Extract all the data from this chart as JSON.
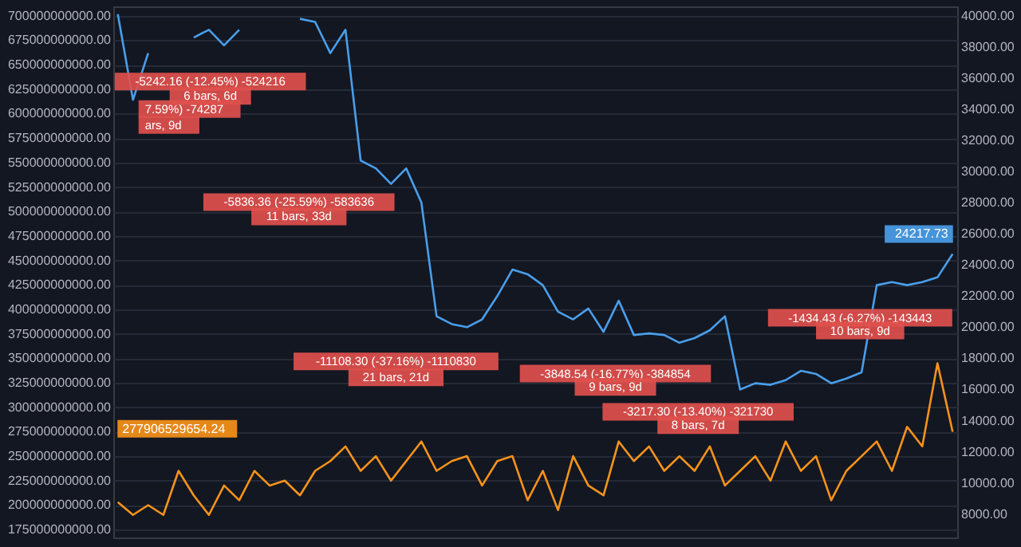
{
  "chart_data": {
    "type": "line",
    "categories": [
      null,
      null,
      null,
      null,
      null,
      null,
      null,
      null,
      null,
      null,
      null,
      null,
      null,
      null,
      null,
      null,
      null,
      null,
      null,
      null,
      null,
      null,
      null,
      null,
      null,
      null,
      null,
      null,
      null,
      null,
      null,
      null,
      null,
      null,
      null,
      null,
      null,
      null,
      null,
      null,
      null,
      null,
      null,
      null,
      null,
      null,
      null,
      null,
      null,
      null,
      null,
      null,
      null,
      null,
      null,
      null
    ],
    "series": [
      {
        "color": "#f7931a",
        "values": [
          203000000000,
          190000000000,
          200000000000,
          190000000000,
          235000000000,
          210000000000,
          190000000000,
          220000000000,
          205000000000,
          235000000000,
          220000000000,
          225000000000,
          210000000000,
          235000000000,
          245000000000,
          260000000000,
          235000000000,
          250000000000,
          225000000000,
          245000000000,
          265000000000,
          235000000000,
          245000000000,
          250000000000,
          220000000000,
          245000000000,
          250000000000,
          205000000000,
          235000000000,
          195000000000,
          250000000000,
          220000000000,
          210000000000,
          265000000000,
          245000000000,
          260000000000,
          235000000000,
          250000000000,
          235000000000,
          260000000000,
          220000000000,
          235000000000,
          250000000000,
          225000000000,
          265000000000,
          235000000000,
          250000000000,
          205000000000,
          235000000000,
          250000000000,
          265000000000,
          235000000000,
          280000000000,
          260000000000,
          345000000000,
          275000000000
        ]
      },
      {
        "color": "#4a9eea",
        "axis": "y2",
        "values": [
          40100,
          34600,
          37600,
          null,
          null,
          38600,
          39100,
          38100,
          39100,
          null,
          null,
          null,
          39800,
          39600,
          37600,
          39100,
          30700,
          30200,
          29200,
          30200,
          28000,
          20700,
          20200,
          20000,
          20500,
          22000,
          23700,
          23400,
          22700,
          21000,
          20500,
          21200,
          19700,
          21700,
          19500,
          19600,
          19500,
          19000,
          19300,
          19800,
          20700,
          16000,
          16400,
          16300,
          16600,
          17200,
          17000,
          16400,
          16700,
          17100,
          22700,
          22900,
          22700,
          22900,
          23200,
          24700
        ]
      }
    ],
    "ylim": [
      167000000000,
      709500000000
    ],
    "yticks": [
      {
        "value": 175000000000,
        "label": "175000000000.00"
      },
      {
        "value": 200000000000,
        "label": "200000000000.00"
      },
      {
        "value": 225000000000,
        "label": "225000000000.00"
      },
      {
        "value": 250000000000,
        "label": "250000000000.00"
      },
      {
        "value": 275000000000,
        "label": "275000000000.00"
      },
      {
        "value": 300000000000,
        "label": "300000000000.00"
      },
      {
        "value": 325000000000,
        "label": "325000000000.00"
      },
      {
        "value": 350000000000,
        "label": "350000000000.00"
      },
      {
        "value": 375000000000,
        "label": "375000000000.00"
      },
      {
        "value": 400000000000,
        "label": "400000000000.00"
      },
      {
        "value": 425000000000,
        "label": "425000000000.00"
      },
      {
        "value": 450000000000,
        "label": "450000000000.00"
      },
      {
        "value": 475000000000,
        "label": "475000000000.00"
      },
      {
        "value": 500000000000,
        "label": "500000000000.00"
      },
      {
        "value": 525000000000,
        "label": "525000000000.00"
      },
      {
        "value": 550000000000,
        "label": "550000000000.00"
      },
      {
        "value": 575000000000,
        "label": "575000000000.00"
      },
      {
        "value": 600000000000,
        "label": "600000000000.00"
      },
      {
        "value": 625000000000,
        "label": "625000000000.00"
      },
      {
        "value": 650000000000,
        "label": "650000000000.00"
      },
      {
        "value": 675000000000,
        "label": "675000000000.00"
      },
      {
        "value": 700000000000,
        "label": "700000000000.00"
      }
    ],
    "y2lim": [
      6500,
      40600
    ],
    "y2ticks": [
      {
        "value": 8000,
        "label": "8000.00"
      },
      {
        "value": 10000,
        "label": "10000.00"
      },
      {
        "value": 12000,
        "label": "12000.00"
      },
      {
        "value": 14000,
        "label": "14000.00"
      },
      {
        "value": 16000,
        "label": "16000.00"
      },
      {
        "value": 18000,
        "label": "18000.00"
      },
      {
        "value": 20000,
        "label": "20000.00"
      },
      {
        "value": 22000,
        "label": "22000.00"
      },
      {
        "value": 24000,
        "label": "24000.00"
      },
      {
        "value": 26000,
        "label": "26000.00"
      },
      {
        "value": 28000,
        "label": "28000.00"
      },
      {
        "value": 30000,
        "label": "30000.00"
      },
      {
        "value": 32000,
        "label": "32000.00"
      },
      {
        "value": 34000,
        "label": "34000.00"
      },
      {
        "value": 36000,
        "label": "36000.00"
      },
      {
        "value": 38000,
        "label": "38000.00"
      },
      {
        "value": 40000,
        "label": "40000.00"
      }
    ],
    "grid": "y",
    "annotations": [
      "7.59%) -74287",
      "ars, 9d",
      "-5242.16 (-12.45%) -524216",
      "6 bars, 6d",
      "-5836.36 (-25.59%) -583636",
      "11 bars, 33d",
      "-11108.30 (-37.16%) -1110830",
      "21 bars, 21d",
      "-3848.54 (-16.77%) -384854",
      "9 bars, 9d",
      "-3217.30 (-13.40%) -321730",
      "8 bars, 7d",
      "-1434.43 (-6.27%) -143443",
      "10 bars, 9d",
      "24217.73",
      "277906529654.24"
    ]
  }
}
